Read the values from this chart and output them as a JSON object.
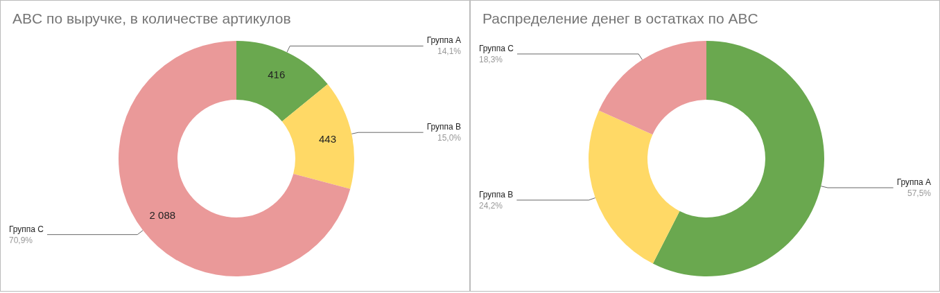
{
  "chart_data": [
    {
      "type": "donut",
      "title": "ABC по выручке, в количестве артикулов",
      "categories": [
        "Группа A",
        "Группа B",
        "Группа C"
      ],
      "values": [
        416,
        443,
        2088
      ],
      "colors": [
        "#6aa84f",
        "#ffd966",
        "#ea9999"
      ],
      "value_labels": [
        "416",
        "443",
        "2 088"
      ],
      "annotations": [
        "14,1%",
        "15,0%",
        "70,9%"
      ],
      "legend": false
    },
    {
      "type": "donut",
      "title": "Распределение денег в остатках по ABC",
      "categories": [
        "Группа A",
        "Группа B",
        "Группа C"
      ],
      "values": [
        57.5,
        24.2,
        18.3
      ],
      "colors": [
        "#6aa84f",
        "#ffd966",
        "#ea9999"
      ],
      "value_labels": [
        "57,5%",
        "24,2%",
        "18,3%"
      ],
      "legend": false
    }
  ]
}
